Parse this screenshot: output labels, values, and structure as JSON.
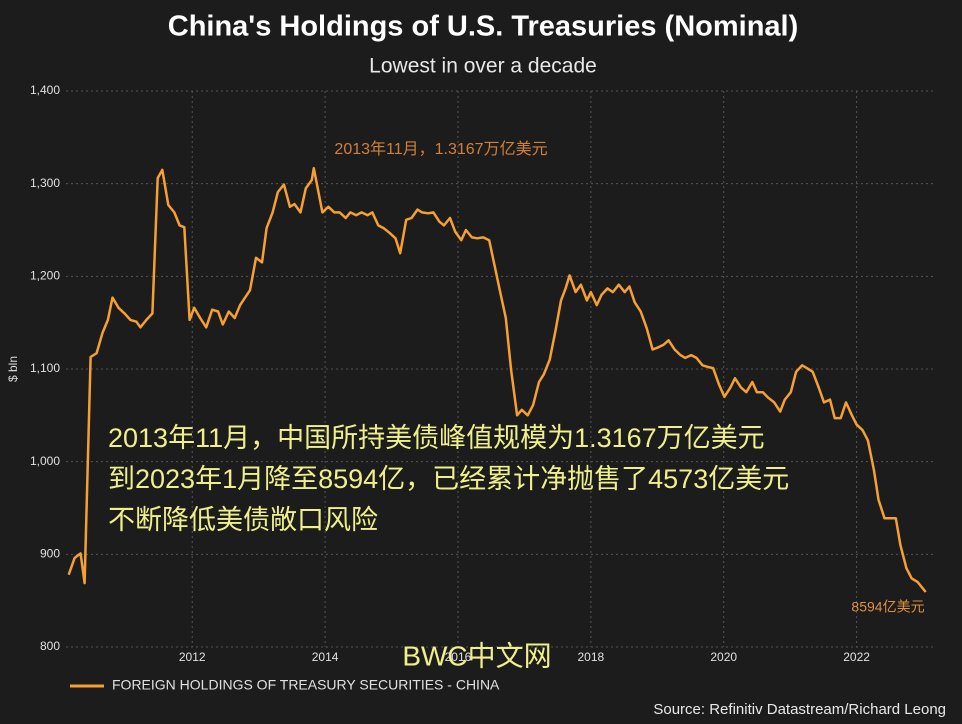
{
  "chart_data": {
    "type": "line",
    "title": "China's Holdings of U.S. Treasuries (Nominal)",
    "subtitle": "Lowest in over a decade",
    "y_label": "$ bln",
    "source": "Source: Refinitiv Datastream/Richard Leong",
    "watermark": "BWC中文网",
    "annotations": [
      {
        "text": "2013年11月，1.3167万亿美元"
      },
      {
        "text": "8594亿美元"
      }
    ],
    "overlay_text": [
      "2013年11月，中国所持美债峰值规模为1.3167万亿美元",
      "到2023年1月降至8594亿，已经累计净抛售了4573亿美元",
      "不断降低美债敞口风险"
    ],
    "xlim": [
      2010.1,
      2023.15
    ],
    "xticks": [
      2012,
      2014,
      2016,
      2018,
      2020,
      2022
    ],
    "ylim": [
      800,
      1400
    ],
    "yticks": [
      800,
      900,
      {
        "value": 1000,
        "label": "1,000"
      },
      {
        "value": 1100,
        "label": "1,100"
      },
      {
        "value": 1200,
        "label": "1,200"
      },
      {
        "value": 1300,
        "label": "1,300"
      },
      {
        "value": 1400,
        "label": "1,400"
      }
    ],
    "grid": true,
    "x": [
      2010.14,
      2010.23,
      2010.32,
      2010.38,
      2010.47,
      2010.56,
      2010.65,
      2010.73,
      2010.8,
      2010.89,
      2010.98,
      2011.07,
      2011.16,
      2011.22,
      2011.31,
      2011.4,
      2011.48,
      2011.55,
      2011.64,
      2011.73,
      2011.81,
      2011.88,
      2011.96,
      2012.03,
      2012.12,
      2012.21,
      2012.3,
      2012.39,
      2012.46,
      2012.55,
      2012.64,
      2012.72,
      2012.87,
      2012.96,
      2013.05,
      2013.12,
      2013.21,
      2013.29,
      2013.38,
      2013.47,
      2013.54,
      2013.63,
      2013.71,
      2013.8,
      2013.83,
      2013.96,
      2014.05,
      2014.14,
      2014.22,
      2014.31,
      2014.38,
      2014.47,
      2014.55,
      2014.64,
      2014.71,
      2014.8,
      2014.88,
      2014.97,
      2015.06,
      2015.13,
      2015.22,
      2015.3,
      2015.39,
      2015.46,
      2015.55,
      2015.63,
      2015.72,
      2015.79,
      2015.88,
      2015.96,
      2016.05,
      2016.12,
      2016.21,
      2016.29,
      2016.38,
      2016.47,
      2016.54,
      2016.63,
      2016.72,
      2016.8,
      2016.89,
      2016.96,
      2017.05,
      2017.13,
      2017.22,
      2017.29,
      2017.38,
      2017.47,
      2017.55,
      2017.62,
      2017.68,
      2017.77,
      2017.85,
      2017.94,
      2018.0,
      2018.09,
      2018.16,
      2018.25,
      2018.33,
      2018.42,
      2018.51,
      2018.58,
      2018.66,
      2018.75,
      2018.84,
      2018.93,
      2019.0,
      2019.09,
      2019.17,
      2019.26,
      2019.35,
      2019.42,
      2019.51,
      2019.59,
      2019.68,
      2019.77,
      2019.84,
      2019.93,
      2020.01,
      2020.1,
      2020.17,
      2020.26,
      2020.34,
      2020.43,
      2020.5,
      2020.59,
      2020.67,
      2020.76,
      2020.85,
      2020.92,
      2021.01,
      2021.09,
      2021.18,
      2021.25,
      2021.34,
      2021.43,
      2021.51,
      2021.6,
      2021.67,
      2021.76,
      2021.84,
      2021.93,
      2022.0,
      2022.09,
      2022.17,
      2022.26,
      2022.33,
      2022.42,
      2022.5,
      2022.59,
      2022.66,
      2022.75,
      2022.83,
      2022.92,
      2023.04
    ],
    "series": [
      {
        "name": "FOREIGN HOLDINGS OF TREASURY SECURITIES - CHINA",
        "color": "#f5a030",
        "values": [
          878,
          896,
          901,
          869,
          1113,
          1117,
          1139,
          1153,
          1177,
          1166,
          1160,
          1153,
          1151,
          1145,
          1153,
          1160,
          1306,
          1315,
          1277,
          1269,
          1255,
          1253,
          1153,
          1166,
          1155,
          1145,
          1164,
          1162,
          1148,
          1162,
          1155,
          1169,
          1185,
          1220,
          1215,
          1252,
          1269,
          1291,
          1299,
          1275,
          1278,
          1269,
          1295,
          1304,
          1316.7,
          1269,
          1275,
          1269,
          1269,
          1263,
          1269,
          1266,
          1269,
          1266,
          1269,
          1255,
          1252,
          1247,
          1241,
          1225,
          1261,
          1263,
          1272,
          1269,
          1268,
          1269,
          1259,
          1255,
          1263,
          1248,
          1239,
          1250,
          1242,
          1241,
          1242,
          1239,
          1215,
          1185,
          1155,
          1099,
          1050,
          1056,
          1050,
          1061,
          1086,
          1094,
          1110,
          1142,
          1174,
          1187,
          1201,
          1183,
          1191,
          1174,
          1183,
          1169,
          1180,
          1187,
          1183,
          1191,
          1183,
          1189,
          1172,
          1162,
          1144,
          1121,
          1123,
          1126,
          1131,
          1121,
          1115,
          1112,
          1115,
          1112,
          1104,
          1102,
          1101,
          1083,
          1070,
          1080,
          1090,
          1080,
          1075,
          1086,
          1075,
          1075,
          1069,
          1064,
          1054,
          1067,
          1075,
          1097,
          1104,
          1101,
          1097,
          1080,
          1064,
          1067,
          1047,
          1047,
          1064,
          1050,
          1040,
          1034,
          1023,
          991,
          959,
          939,
          939,
          939,
          910,
          885,
          874,
          870,
          859.4
        ]
      }
    ]
  }
}
